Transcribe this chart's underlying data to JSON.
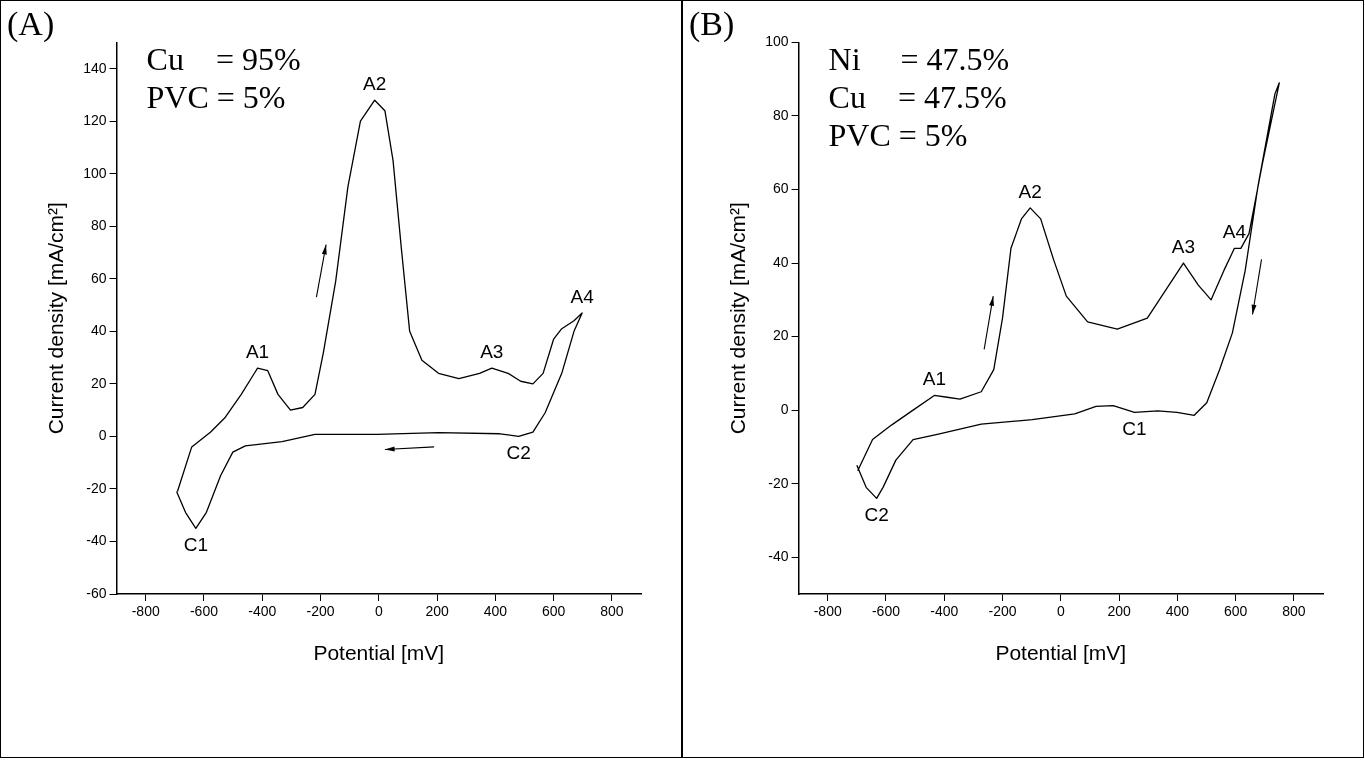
{
  "chart_data": [
    {
      "type": "line",
      "title": "(A)",
      "xlabel": "Potential [mV]",
      "ylabel": "Current density [mA/cm²]",
      "xlim": [
        -900,
        900
      ],
      "xticks": [
        -800,
        -600,
        -400,
        -200,
        0,
        200,
        400,
        600,
        800
      ],
      "ylim": [
        -60,
        150
      ],
      "yticks": [
        -60,
        -40,
        -20,
        0,
        20,
        40,
        60,
        80,
        100,
        120,
        140
      ],
      "grid": false,
      "legend": false,
      "marker": "none",
      "line_style": "solid",
      "series": [
        {
          "color": "#000000",
          "x": [
            -691,
            -642,
            -578,
            -529,
            -472,
            -416,
            -381,
            -346,
            -303,
            -261,
            -219,
            -190,
            -148,
            -106,
            -63,
            -14,
            21,
            49,
            78,
            106,
            148,
            205,
            275,
            346,
            388,
            444,
            487,
            529,
            564,
            600,
            628,
            670,
            698,
            670,
            628,
            571,
            529,
            480,
            416,
            205,
            -7,
            -219,
            -332,
            -458,
            -501,
            -543,
            -592,
            -628,
            -663,
            -694
          ],
          "values": [
            -21,
            -4,
            1.6,
            7,
            16,
            26,
            25,
            16,
            10,
            11,
            16,
            32,
            59,
            95,
            120,
            128,
            124,
            105,
            71,
            40,
            29,
            24,
            22,
            24,
            26,
            24,
            21,
            20,
            24,
            37,
            41,
            44,
            47,
            40,
            24,
            9,
            1.6,
            0,
            1,
            1.4,
            0.8,
            0.8,
            -2,
            -3.6,
            -6,
            -15,
            -29,
            -35,
            -29,
            -21
          ]
        }
      ],
      "annotations": [
        "Cu    = 95%",
        "PVC = 5%",
        {
          "text": "A1",
          "x": -416,
          "y": 26
        },
        {
          "text": "A2",
          "x": -14,
          "y": 128
        },
        {
          "text": "A3",
          "x": 388,
          "y": 26
        },
        {
          "text": "A4",
          "x": 698,
          "y": 47
        },
        {
          "text": "C1",
          "x": -628,
          "y": -35
        },
        {
          "text": "C2",
          "x": 480,
          "y": 0
        }
      ]
    },
    {
      "type": "line",
      "title": "(B)",
      "xlabel": "Potential [mV]",
      "ylabel": "Current density [mA/cm²]",
      "xlim": [
        -900,
        900
      ],
      "xticks": [
        -800,
        -600,
        -400,
        -200,
        0,
        200,
        400,
        600,
        800
      ],
      "ylim": [
        -50,
        100
      ],
      "yticks": [
        -40,
        -20,
        0,
        20,
        40,
        60,
        80,
        100
      ],
      "grid": false,
      "legend": false,
      "marker": "none",
      "line_style": "solid",
      "series": [
        {
          "color": "#000000",
          "x": [
            -697,
            -646,
            -580,
            -507,
            -434,
            -390,
            -346,
            -273,
            -230,
            -200,
            -171,
            -135,
            -105,
            -69,
            -25,
            19,
            92,
            194,
            297,
            355,
            421,
            472,
            516,
            560,
            596,
            618,
            646,
            692,
            750,
            735,
            677,
            633,
            589,
            545,
            501,
            458,
            399,
            333,
            253,
            180,
            121,
            48,
            -98,
            -273,
            -420,
            -507,
            -566,
            -610,
            -632,
            -668,
            -700
          ],
          "values": [
            -16.5,
            -8,
            -4,
            0,
            4,
            3.5,
            3,
            5,
            11,
            25,
            44,
            52,
            55,
            52,
            41,
            31,
            24,
            22,
            25,
            32,
            40,
            34,
            30,
            38,
            44,
            44,
            48,
            67,
            89,
            86,
            61,
            38,
            21,
            11,
            2,
            -1.4,
            -0.6,
            -0.2,
            -0.6,
            1.2,
            1,
            -1,
            -2.6,
            -3.8,
            -6.5,
            -8,
            -13.6,
            -21,
            -24,
            -21,
            -15
          ]
        }
      ],
      "annotations": [
        "Ni     = 47.5%",
        "Cu    = 47.5%",
        "PVC = 5%",
        {
          "text": "A1",
          "x": -434,
          "y": 4
        },
        {
          "text": "A2",
          "x": -105,
          "y": 55
        },
        {
          "text": "A3",
          "x": 421,
          "y": 40
        },
        {
          "text": "A4",
          "x": 596,
          "y": 44
        },
        {
          "text": "C1",
          "x": 253,
          "y": -0.6
        },
        {
          "text": "C2",
          "x": -632,
          "y": -24
        }
      ]
    }
  ]
}
